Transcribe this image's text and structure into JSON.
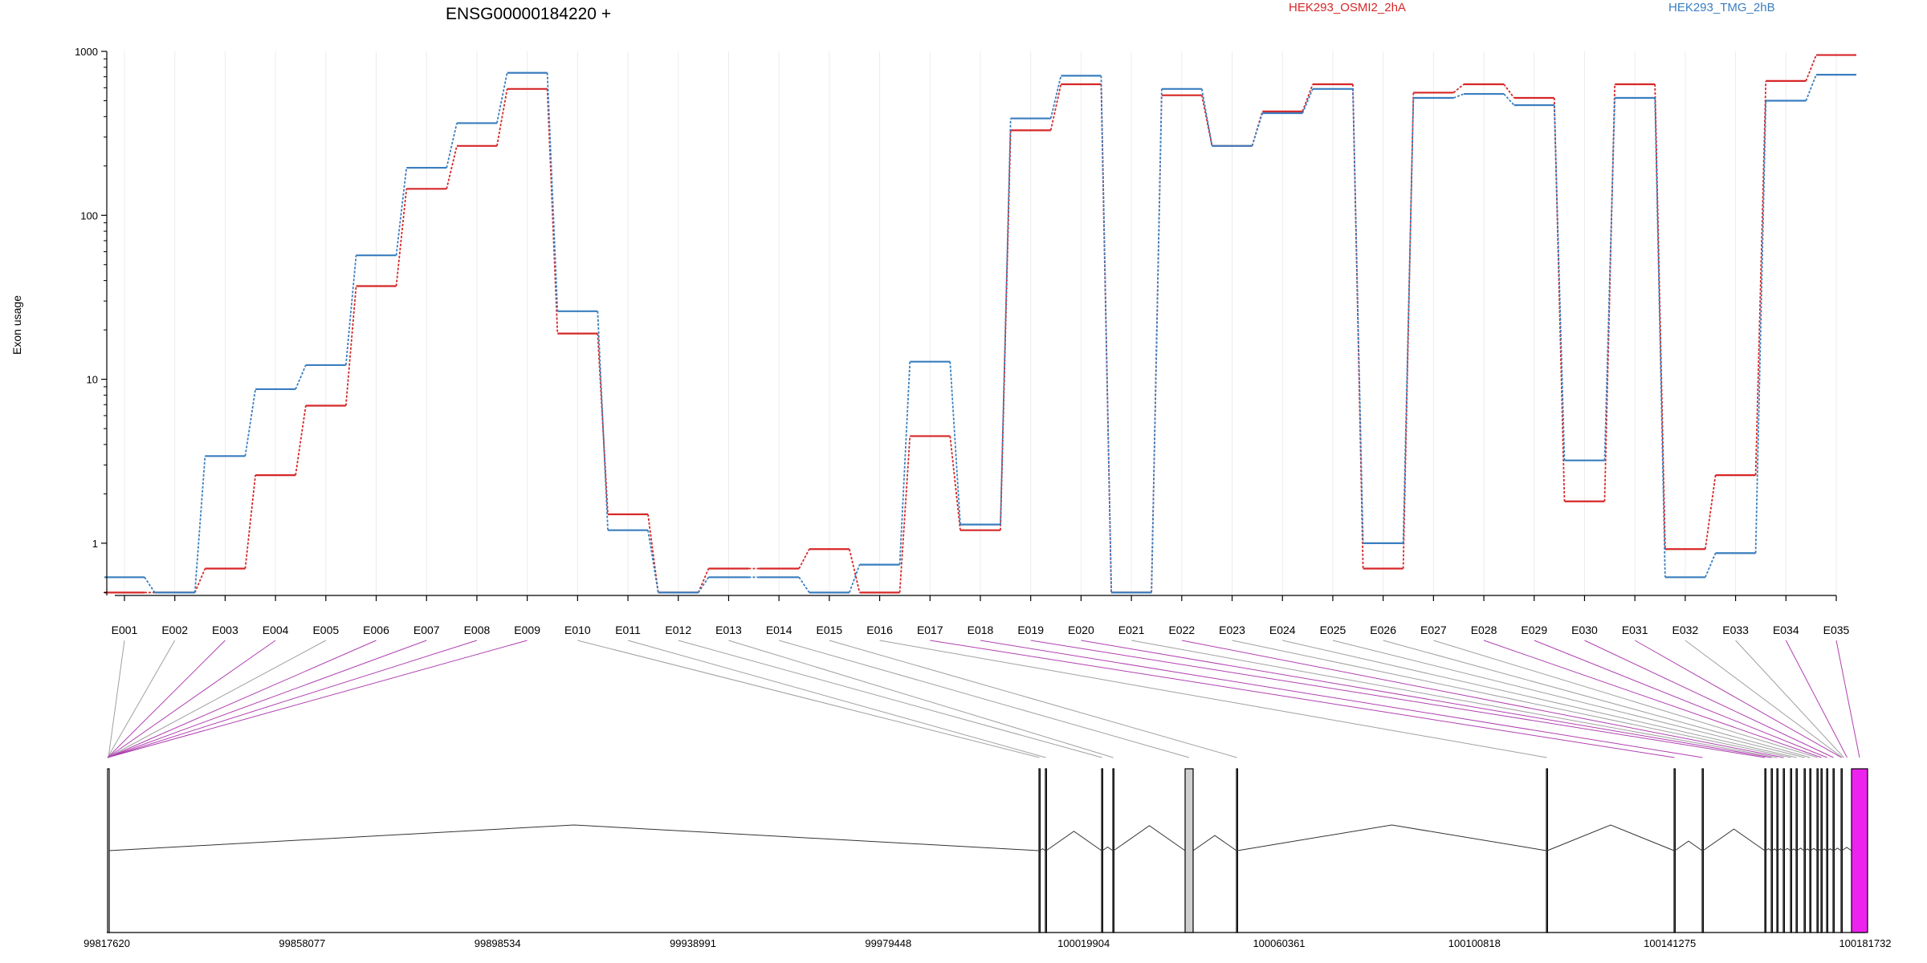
{
  "chart_data": {
    "type": "line",
    "title": "ENSG00000184220 +",
    "ylabel": "Exon usage",
    "xlabel": "",
    "yscale": "log",
    "ylim": [
      0.48,
      1000
    ],
    "yticks": [
      1,
      10,
      100,
      1000
    ],
    "ytick_labels": [
      "1",
      "10",
      "100",
      "1000"
    ],
    "grid": "vertical gridlines at each exon",
    "legend_position": "top-right",
    "legend": [
      {
        "name": "HEK293_OSMI2_2hA",
        "color": "#d62728"
      },
      {
        "name": "HEK293_TMG_2hB",
        "color": "#3a7ebf"
      }
    ],
    "categories": [
      "E001",
      "E002",
      "E003",
      "E004",
      "E005",
      "E006",
      "E007",
      "E008",
      "E009",
      "E010",
      "E011",
      "E012",
      "E013",
      "E014",
      "E015",
      "E016",
      "E017",
      "E018",
      "E019",
      "E020",
      "E021",
      "E022",
      "E023",
      "E024",
      "E025",
      "E026",
      "E027",
      "E028",
      "E029",
      "E030",
      "E031",
      "E032",
      "E033",
      "E034",
      "E035"
    ],
    "series": [
      {
        "name": "HEK293_OSMI2_2hA",
        "color": "#d62728",
        "values": [
          0.5,
          0.5,
          0.7,
          2.6,
          6.9,
          37,
          145,
          265,
          590,
          19,
          1.5,
          0.5,
          0.7,
          0.7,
          0.92,
          0.5,
          4.5,
          1.2,
          330,
          630,
          0.5,
          540,
          265,
          430,
          630,
          0.7,
          560,
          630,
          520,
          1.8,
          630,
          0.92,
          2.6,
          660,
          950
        ]
      },
      {
        "name": "HEK293_TMG_2hB",
        "color": "#3a7ebf",
        "values": [
          0.62,
          0.5,
          3.4,
          8.7,
          12.2,
          57,
          195,
          365,
          740,
          26,
          1.2,
          0.5,
          0.62,
          0.62,
          0.5,
          0.74,
          12.8,
          1.3,
          390,
          710,
          0.5,
          590,
          265,
          420,
          590,
          1.0,
          520,
          550,
          470,
          3.2,
          520,
          0.62,
          0.87,
          500,
          720
        ]
      }
    ],
    "gene_model": {
      "genomic_ticks": [
        "99817620",
        "99858077",
        "99898534",
        "99938991",
        "99979448",
        "100019904",
        "100060361",
        "100100818",
        "100141275",
        "100181732"
      ],
      "genomic_start": 99817620,
      "genomic_end": 100181732,
      "exon_connector_colors": {
        "gray": "#a0a0a0",
        "purple": "#b040b0"
      },
      "highlight_color": "#ee22ee",
      "exon_connector_color_by_exon": [
        "gray",
        "gray",
        "purple",
        "purple",
        "gray",
        "purple",
        "purple",
        "purple",
        "purple",
        "gray",
        "gray",
        "gray",
        "gray",
        "gray",
        "gray",
        "gray",
        "purple",
        "purple",
        "purple",
        "purple",
        "gray",
        "purple",
        "gray",
        "gray",
        "gray",
        "gray",
        "gray",
        "purple",
        "purple",
        "purple",
        "purple",
        "gray",
        "gray",
        "purple",
        "purple"
      ]
    }
  }
}
